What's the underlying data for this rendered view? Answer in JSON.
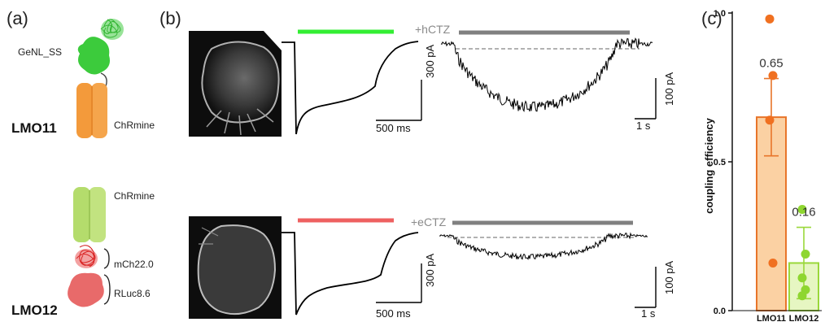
{
  "panels": {
    "a": "(a)",
    "b": "(b)",
    "c": "(c)"
  },
  "constructs": {
    "lmo11": {
      "name": "LMO11",
      "luciferase": "GeNL_SS",
      "opsin": "ChRmine",
      "colors": {
        "luciferase": "#35c335",
        "opsin": "#f39a3b"
      }
    },
    "lmo12": {
      "name": "LMO12",
      "opsin": "ChRmine",
      "linker": "mCh22.0",
      "luciferase": "RLuc8.6",
      "colors": {
        "opsin": "#b8de74",
        "linker": "#e52a2a",
        "luciferase": "#e66a6a"
      }
    }
  },
  "traces": {
    "top": {
      "light_color": "#33ee33",
      "agent": "+hCTZ",
      "photo_scale_y": "300 pA",
      "photo_scale_x": "500 ms",
      "bio_scale_y": "100 pA",
      "bio_scale_x": "1 s"
    },
    "bottom": {
      "light_color": "#ee6060",
      "agent": "+eCTZ",
      "photo_scale_y": "300 pA",
      "photo_scale_x": "500 ms",
      "bio_scale_y": "100 pA",
      "bio_scale_x": "1 s"
    }
  },
  "chart_data": {
    "type": "bar",
    "categories": [
      "LMO11",
      "LMO12"
    ],
    "values": [
      0.65,
      0.16
    ],
    "errors": [
      0.13,
      0.12
    ],
    "value_labels": [
      "0.65",
      "0.16"
    ],
    "points": [
      [
        0.98,
        0.79,
        0.64,
        0.16
      ],
      [
        0.34,
        0.19,
        0.11,
        0.07,
        0.05
      ]
    ],
    "ylabel": "coupling efficiency",
    "ylim": [
      0.0,
      1.0
    ],
    "yticks": [
      "0.0",
      "0.5",
      "1.0"
    ],
    "colors": {
      "LMO11": {
        "fill": "#fbd1a3",
        "edge": "#e8752a",
        "point": "#f07020"
      },
      "LMO12": {
        "fill": "#e6f6c2",
        "edge": "#9ad83a",
        "point": "#8ed630"
      }
    }
  }
}
